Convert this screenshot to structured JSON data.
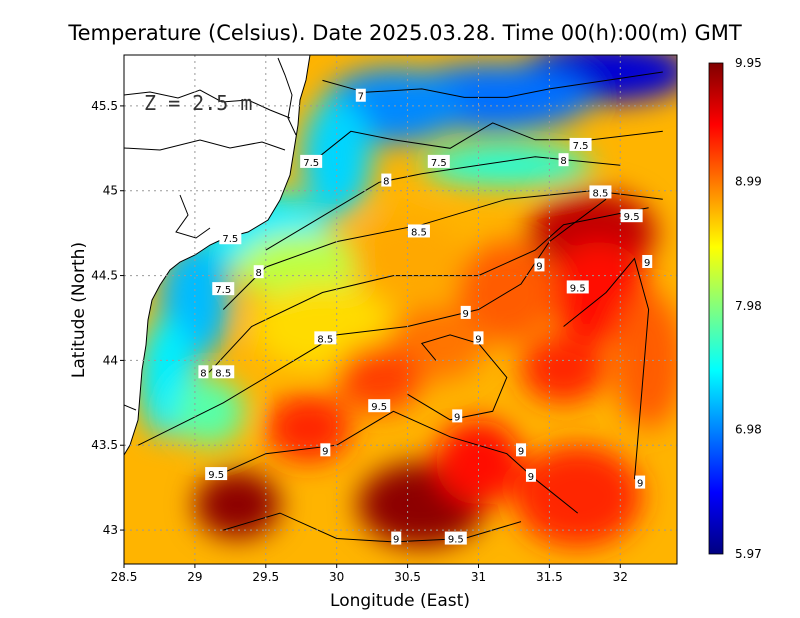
{
  "chart_data": {
    "type": "heatmap",
    "title": "Temperature (Celsius). Date 2025.03.28. Time 00(h):00(m) GMT",
    "depth_label": "Z = 2.5 m",
    "xlabel": "Longitude (East)",
    "ylabel": "Latitude (North)",
    "xlim": [
      28.5,
      32.4
    ],
    "ylim": [
      42.8,
      45.8
    ],
    "xticks": [
      "28.5",
      "29",
      "29.5",
      "30",
      "30.5",
      "31",
      "31.5",
      "32"
    ],
    "yticks": [
      "43",
      "43.5",
      "44",
      "44.5",
      "45",
      "45.5"
    ],
    "grid": true,
    "colorbar": {
      "min": 5.97,
      "max": 9.95,
      "ticks": [
        "9.95",
        "8.99",
        "7.98",
        "6.98",
        "5.97"
      ],
      "colormap": [
        "#000080",
        "#0000ff",
        "#0080ff",
        "#00ffff",
        "#80ff80",
        "#ffff00",
        "#ff8000",
        "#ff0000",
        "#800000"
      ]
    },
    "contour_levels": [
      7,
      7.5,
      8,
      8.5,
      9,
      9.5
    ],
    "contour_labels": [
      {
        "text": "7",
        "lon": 30.17,
        "lat": 45.56
      },
      {
        "text": "7.5",
        "lon": 29.82,
        "lat": 45.17
      },
      {
        "text": "7.5",
        "lon": 30.72,
        "lat": 45.17
      },
      {
        "text": "7.5",
        "lon": 31.72,
        "lat": 45.27
      },
      {
        "text": "8",
        "lon": 31.6,
        "lat": 45.18
      },
      {
        "text": "8",
        "lon": 30.35,
        "lat": 45.06
      },
      {
        "text": "8.5",
        "lon": 31.86,
        "lat": 44.99
      },
      {
        "text": "9.5",
        "lon": 32.08,
        "lat": 44.85
      },
      {
        "text": "7.5",
        "lon": 29.25,
        "lat": 44.72
      },
      {
        "text": "8.5",
        "lon": 30.58,
        "lat": 44.76
      },
      {
        "text": "8",
        "lon": 29.45,
        "lat": 44.52
      },
      {
        "text": "7.5",
        "lon": 29.2,
        "lat": 44.42
      },
      {
        "text": "9",
        "lon": 31.43,
        "lat": 44.56
      },
      {
        "text": "9.5",
        "lon": 31.7,
        "lat": 44.43
      },
      {
        "text": "9",
        "lon": 32.19,
        "lat": 44.58
      },
      {
        "text": "9",
        "lon": 30.91,
        "lat": 44.28
      },
      {
        "text": "8.5",
        "lon": 29.92,
        "lat": 44.13
      },
      {
        "text": "9",
        "lon": 31.0,
        "lat": 44.13
      },
      {
        "text": "8",
        "lon": 29.06,
        "lat": 43.93
      },
      {
        "text": "8.5",
        "lon": 29.2,
        "lat": 43.93
      },
      {
        "text": "9.5",
        "lon": 30.3,
        "lat": 43.73
      },
      {
        "text": "9",
        "lon": 30.85,
        "lat": 43.67
      },
      {
        "text": "9",
        "lon": 29.92,
        "lat": 43.47
      },
      {
        "text": "9",
        "lon": 31.3,
        "lat": 43.47
      },
      {
        "text": "9.5",
        "lon": 29.15,
        "lat": 43.33
      },
      {
        "text": "9",
        "lon": 31.37,
        "lat": 43.32
      },
      {
        "text": "9",
        "lon": 32.14,
        "lat": 43.28
      },
      {
        "text": "9",
        "lon": 30.42,
        "lat": 42.95
      },
      {
        "text": "9.5",
        "lon": 30.84,
        "lat": 42.95
      }
    ]
  }
}
